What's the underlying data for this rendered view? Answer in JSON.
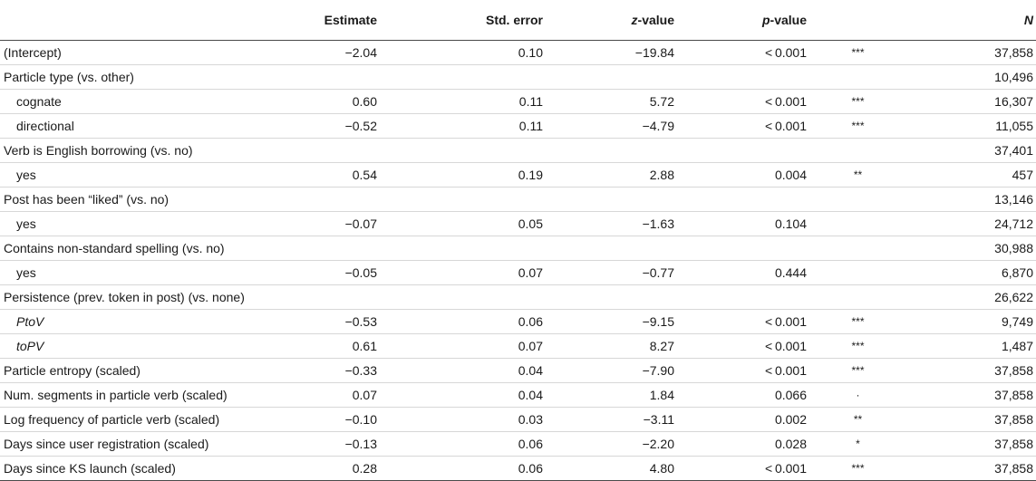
{
  "table": {
    "headers": {
      "estimate": "Estimate",
      "std_error": "Std. error",
      "z_prefix": "z",
      "z_suffix": "-value",
      "p_prefix": "p",
      "p_suffix": "-value",
      "n": "N"
    },
    "rows": [
      {
        "label": "(Intercept)",
        "estimate": "−2.04",
        "se": "0.10",
        "z": "−19.84",
        "p": "< 0.001",
        "sig": "***",
        "n": "37,858"
      },
      {
        "label": "Particle type (vs. other)",
        "estimate": "",
        "se": "",
        "z": "",
        "p": "",
        "sig": "",
        "n": "10,496"
      },
      {
        "label": "cognate",
        "estimate": "0.60",
        "se": "0.11",
        "z": "5.72",
        "p": "< 0.001",
        "sig": "***",
        "n": "16,307"
      },
      {
        "label": "directional",
        "estimate": "−0.52",
        "se": "0.11",
        "z": "−4.79",
        "p": "< 0.001",
        "sig": "***",
        "n": "11,055"
      },
      {
        "label": "Verb is English borrowing (vs. no)",
        "estimate": "",
        "se": "",
        "z": "",
        "p": "",
        "sig": "",
        "n": "37,401"
      },
      {
        "label": "yes",
        "estimate": "0.54",
        "se": "0.19",
        "z": "2.88",
        "p": "0.004",
        "sig": "**",
        "n": "457"
      },
      {
        "label": "Post has been “liked” (vs. no)",
        "estimate": "",
        "se": "",
        "z": "",
        "p": "",
        "sig": "",
        "n": "13,146"
      },
      {
        "label": "yes",
        "estimate": "−0.07",
        "se": "0.05",
        "z": "−1.63",
        "p": "0.104",
        "sig": "",
        "n": "24,712"
      },
      {
        "label": "Contains non-standard spelling (vs. no)",
        "estimate": "",
        "se": "",
        "z": "",
        "p": "",
        "sig": "",
        "n": "30,988"
      },
      {
        "label": "yes",
        "estimate": "−0.05",
        "se": "0.07",
        "z": "−0.77",
        "p": "0.444",
        "sig": "",
        "n": "6,870"
      },
      {
        "label": "Persistence (prev. token in post) (vs. none)",
        "estimate": "",
        "se": "",
        "z": "",
        "p": "",
        "sig": "",
        "n": "26,622"
      },
      {
        "label": "PtoV",
        "estimate": "−0.53",
        "se": "0.06",
        "z": "−9.15",
        "p": "< 0.001",
        "sig": "***",
        "n": "9,749"
      },
      {
        "label": "toPV",
        "estimate": "0.61",
        "se": "0.07",
        "z": "8.27",
        "p": "< 0.001",
        "sig": "***",
        "n": "1,487"
      },
      {
        "label": "Particle entropy (scaled)",
        "estimate": "−0.33",
        "se": "0.04",
        "z": "−7.90",
        "p": "< 0.001",
        "sig": "***",
        "n": "37,858"
      },
      {
        "label": "Num. segments in particle verb (scaled)",
        "estimate": "0.07",
        "se": "0.04",
        "z": "1.84",
        "p": "0.066",
        "sig": "·",
        "n": "37,858"
      },
      {
        "label": "Log frequency of particle verb (scaled)",
        "estimate": "−0.10",
        "se": "0.03",
        "z": "−3.11",
        "p": "0.002",
        "sig": "**",
        "n": "37,858"
      },
      {
        "label": "Days since user registration (scaled)",
        "estimate": "−0.13",
        "se": "0.06",
        "z": "−2.20",
        "p": "0.028",
        "sig": "*",
        "n": "37,858"
      },
      {
        "label": "Days since KS launch (scaled)",
        "estimate": "0.28",
        "se": "0.06",
        "z": "4.80",
        "p": "< 0.001",
        "sig": "***",
        "n": "37,858"
      }
    ]
  }
}
